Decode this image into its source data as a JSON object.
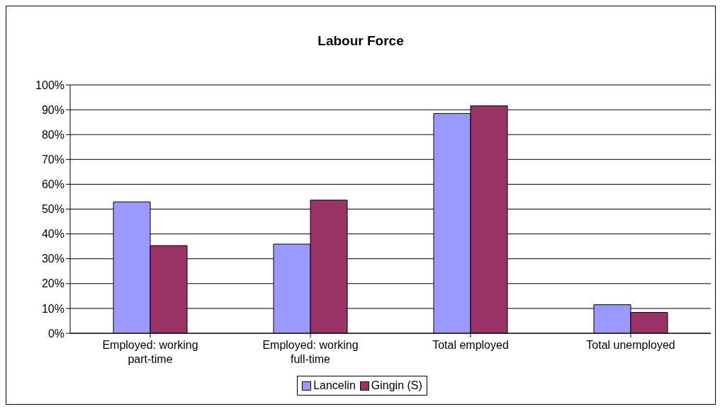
{
  "chart_data": {
    "type": "bar",
    "title": "Labour Force",
    "categories": [
      "Employed: working part-time",
      "Employed: working full-time",
      "Total employed",
      "Total unemployed"
    ],
    "series": [
      {
        "name": "Lancelin",
        "color": "#9999ff",
        "values": [
          52.9,
          35.9,
          88.5,
          11.5
        ]
      },
      {
        "name": "Gingin (S)",
        "color": "#993366",
        "values": [
          35.3,
          53.6,
          91.6,
          8.4
        ]
      }
    ],
    "ylim": [
      0,
      100
    ],
    "yticks": [
      {
        "value": 0,
        "label": "0%"
      },
      {
        "value": 10,
        "label": "10%"
      },
      {
        "value": 20,
        "label": "20%"
      },
      {
        "value": 30,
        "label": "30%"
      },
      {
        "value": 40,
        "label": "40%"
      },
      {
        "value": 50,
        "label": "50%"
      },
      {
        "value": 60,
        "label": "60%"
      },
      {
        "value": 70,
        "label": "70%"
      },
      {
        "value": 80,
        "label": "80%"
      },
      {
        "value": 90,
        "label": "90%"
      },
      {
        "value": 100,
        "label": "100%"
      }
    ],
    "grid": "y",
    "legend": "bottom"
  }
}
